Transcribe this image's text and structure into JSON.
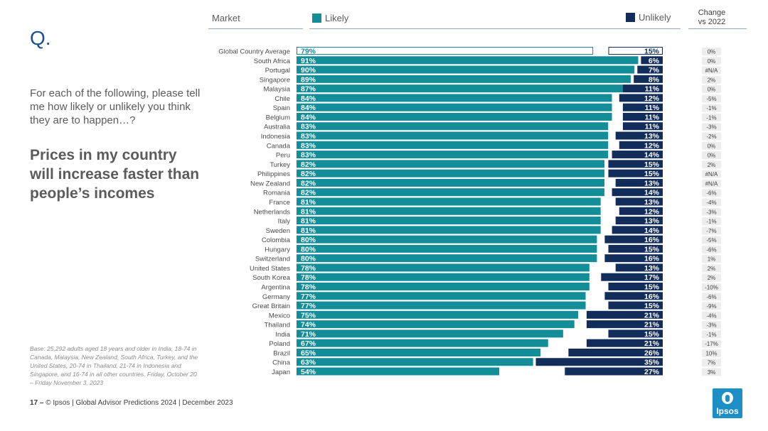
{
  "slide": {
    "q_mark": "Q.",
    "intro": "For each of the following, please tell me how likely or unlikely you think they are to happen…?",
    "statement": "Prices in my country will increase faster than people’s incomes",
    "base_note": "Base: 25,292 adults aged 18 years and older in India, 18-74 in Canada, Malaysia, New Zealand, South Africa, Turkey, and the United States, 20-74 in Thailand, 21-74 in Indonesia and Singapore, and 16-74 in all other countries. Friday, October 20 – Friday November 3, 2023",
    "footer_page": "17",
    "footer_dash": " – ",
    "footer_text": " © Ipsos | Global Advisor Predictions 2024 | December 2023",
    "logo_text": "Ipsos"
  },
  "headers": {
    "market": "Market",
    "likely": "Likely",
    "unlikely": "Unlikely",
    "change": "Change vs 2022"
  },
  "colors": {
    "likely": "#138d98",
    "unlikely": "#122d5a",
    "header_rule": "#8da9c4"
  },
  "chart_data": {
    "type": "bar",
    "title": "Prices in my country will increase faster than people’s incomes",
    "categories": [
      "Global Country Average",
      "South Africa",
      "Portugal",
      "Singapore",
      "Malaysia",
      "Chile",
      "Spain",
      "Belgium",
      "Australia",
      "Indonesia",
      "Canada",
      "Peru",
      "Turkey",
      "Philippines",
      "New Zealand",
      "Romania",
      "France",
      "Netherlands",
      "Italy",
      "Sweden",
      "Colombia",
      "Hungary",
      "Switzerland",
      "United States",
      "South Korea",
      "Argentina",
      "Germany",
      "Great Britain",
      "Mexico",
      "Thailand",
      "India",
      "Poland",
      "Brazil",
      "China",
      "Japan"
    ],
    "series": [
      {
        "name": "Likely",
        "values": [
          79,
          91,
          90,
          89,
          87,
          84,
          84,
          84,
          83,
          83,
          83,
          83,
          82,
          82,
          82,
          82,
          81,
          81,
          81,
          81,
          80,
          80,
          80,
          78,
          78,
          78,
          77,
          77,
          75,
          74,
          71,
          67,
          65,
          63,
          54
        ]
      },
      {
        "name": "Unlikely",
        "values": [
          15,
          6,
          7,
          8,
          11,
          12,
          11,
          11,
          11,
          13,
          12,
          14,
          15,
          15,
          13,
          14,
          13,
          12,
          13,
          14,
          16,
          15,
          16,
          13,
          17,
          15,
          16,
          15,
          21,
          21,
          15,
          21,
          26,
          35,
          27
        ]
      }
    ],
    "change_vs_2022": [
      "0%",
      "0%",
      "#N/A",
      "2%",
      "0%",
      "-5%",
      "-1%",
      "-1%",
      "-3%",
      "-2%",
      "0%",
      "0%",
      "2%",
      "#N/A",
      "#N/A",
      "-6%",
      "-4%",
      "-3%",
      "-1%",
      "-7%",
      "-5%",
      "-6%",
      "1%",
      "2%",
      "2%",
      "-10%",
      "-6%",
      "-9%",
      "-4%",
      "-3%",
      "-1%",
      "-17%",
      "10%",
      "7%",
      "3%"
    ],
    "xlim": [
      0,
      100
    ],
    "legend": "top",
    "grid": false
  }
}
